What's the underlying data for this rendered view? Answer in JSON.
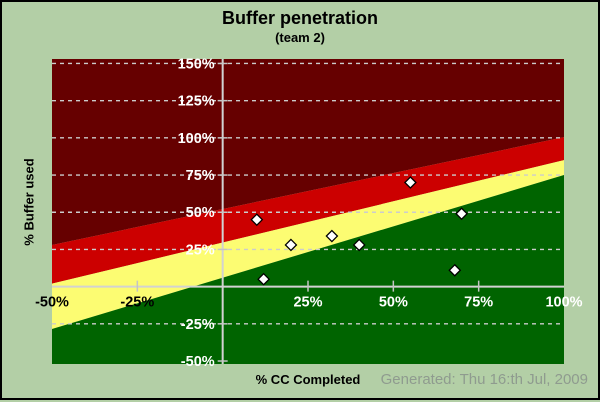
{
  "footer": {
    "generated": "Generated: Thu 16:th Jul, 2009"
  },
  "chart_data": {
    "type": "scatter",
    "title": "Buffer penetration",
    "subtitle": "(team 2)",
    "xlabel": "% CC Completed",
    "ylabel": "% Buffer used",
    "xlim": [
      -50,
      100
    ],
    "ylim": [
      -52,
      153
    ],
    "grid": "horizontal-dashed",
    "legend": "none",
    "marker": "diamond",
    "points": [
      {
        "cc": 10,
        "buffer": 45
      },
      {
        "cc": 12,
        "buffer": 5
      },
      {
        "cc": 20,
        "buffer": 28
      },
      {
        "cc": 32,
        "buffer": 34
      },
      {
        "cc": 40,
        "buffer": 28
      },
      {
        "cc": 55,
        "buffer": 70
      },
      {
        "cc": 68,
        "buffer": 11
      },
      {
        "cc": 70,
        "buffer": 49
      }
    ],
    "zone_lines": [
      {
        "name": "act-limit",
        "y_at_xmin": 28,
        "y_at_xmax": 100.5
      },
      {
        "name": "watch-limit",
        "y_at_xmin": 2,
        "y_at_xmax": 85
      },
      {
        "name": "safe-limit",
        "y_at_xmin": -28.5,
        "y_at_xmax": 75
      }
    ],
    "zone_colors": {
      "beyond": "#660000",
      "act": "#cc0000",
      "watch": "#fcfc72",
      "safe": "#006400"
    },
    "y_gridlines": [
      150,
      125,
      100,
      75,
      50,
      25,
      -25
    ],
    "y_tick_marks": [
      150,
      125,
      100,
      75,
      50,
      25,
      -25,
      -50
    ],
    "x_tick_marks": [
      -25,
      25,
      50,
      75
    ],
    "y_tick_labels": [
      {
        "value": 150,
        "label": "150%",
        "color": "#ffffff"
      },
      {
        "value": 125,
        "label": "125%",
        "color": "#ffffff"
      },
      {
        "value": 100,
        "label": "100%",
        "color": "#ffffff"
      },
      {
        "value": 75,
        "label": "75%",
        "color": "#ffffff"
      },
      {
        "value": 50,
        "label": "50%",
        "color": "#ffffff"
      },
      {
        "value": 25,
        "label": "25%",
        "color": "#ffffff"
      },
      {
        "value": -25,
        "label": "-25%",
        "color": "#ffffff"
      },
      {
        "value": -50,
        "label": "-50%",
        "color": "#ffffff"
      }
    ],
    "x_tick_labels": [
      {
        "value": -50,
        "label": "-50%",
        "color": "#000000"
      },
      {
        "value": -25,
        "label": "-25%",
        "color": "#000000"
      },
      {
        "value": 25,
        "label": "25%",
        "color": "#ffffff"
      },
      {
        "value": 50,
        "label": "50%",
        "color": "#ffffff"
      },
      {
        "value": 75,
        "label": "75%",
        "color": "#ffffff"
      },
      {
        "value": 100,
        "label": "100%",
        "color": "#ffffff"
      }
    ],
    "colors": {
      "background": "#b3cfa6",
      "gridline": "#cccccc",
      "axis_line": "#d2d2d2",
      "tick": "#c4c4c4",
      "marker_fill": "#ffffff",
      "marker_stroke": "#000000"
    }
  }
}
